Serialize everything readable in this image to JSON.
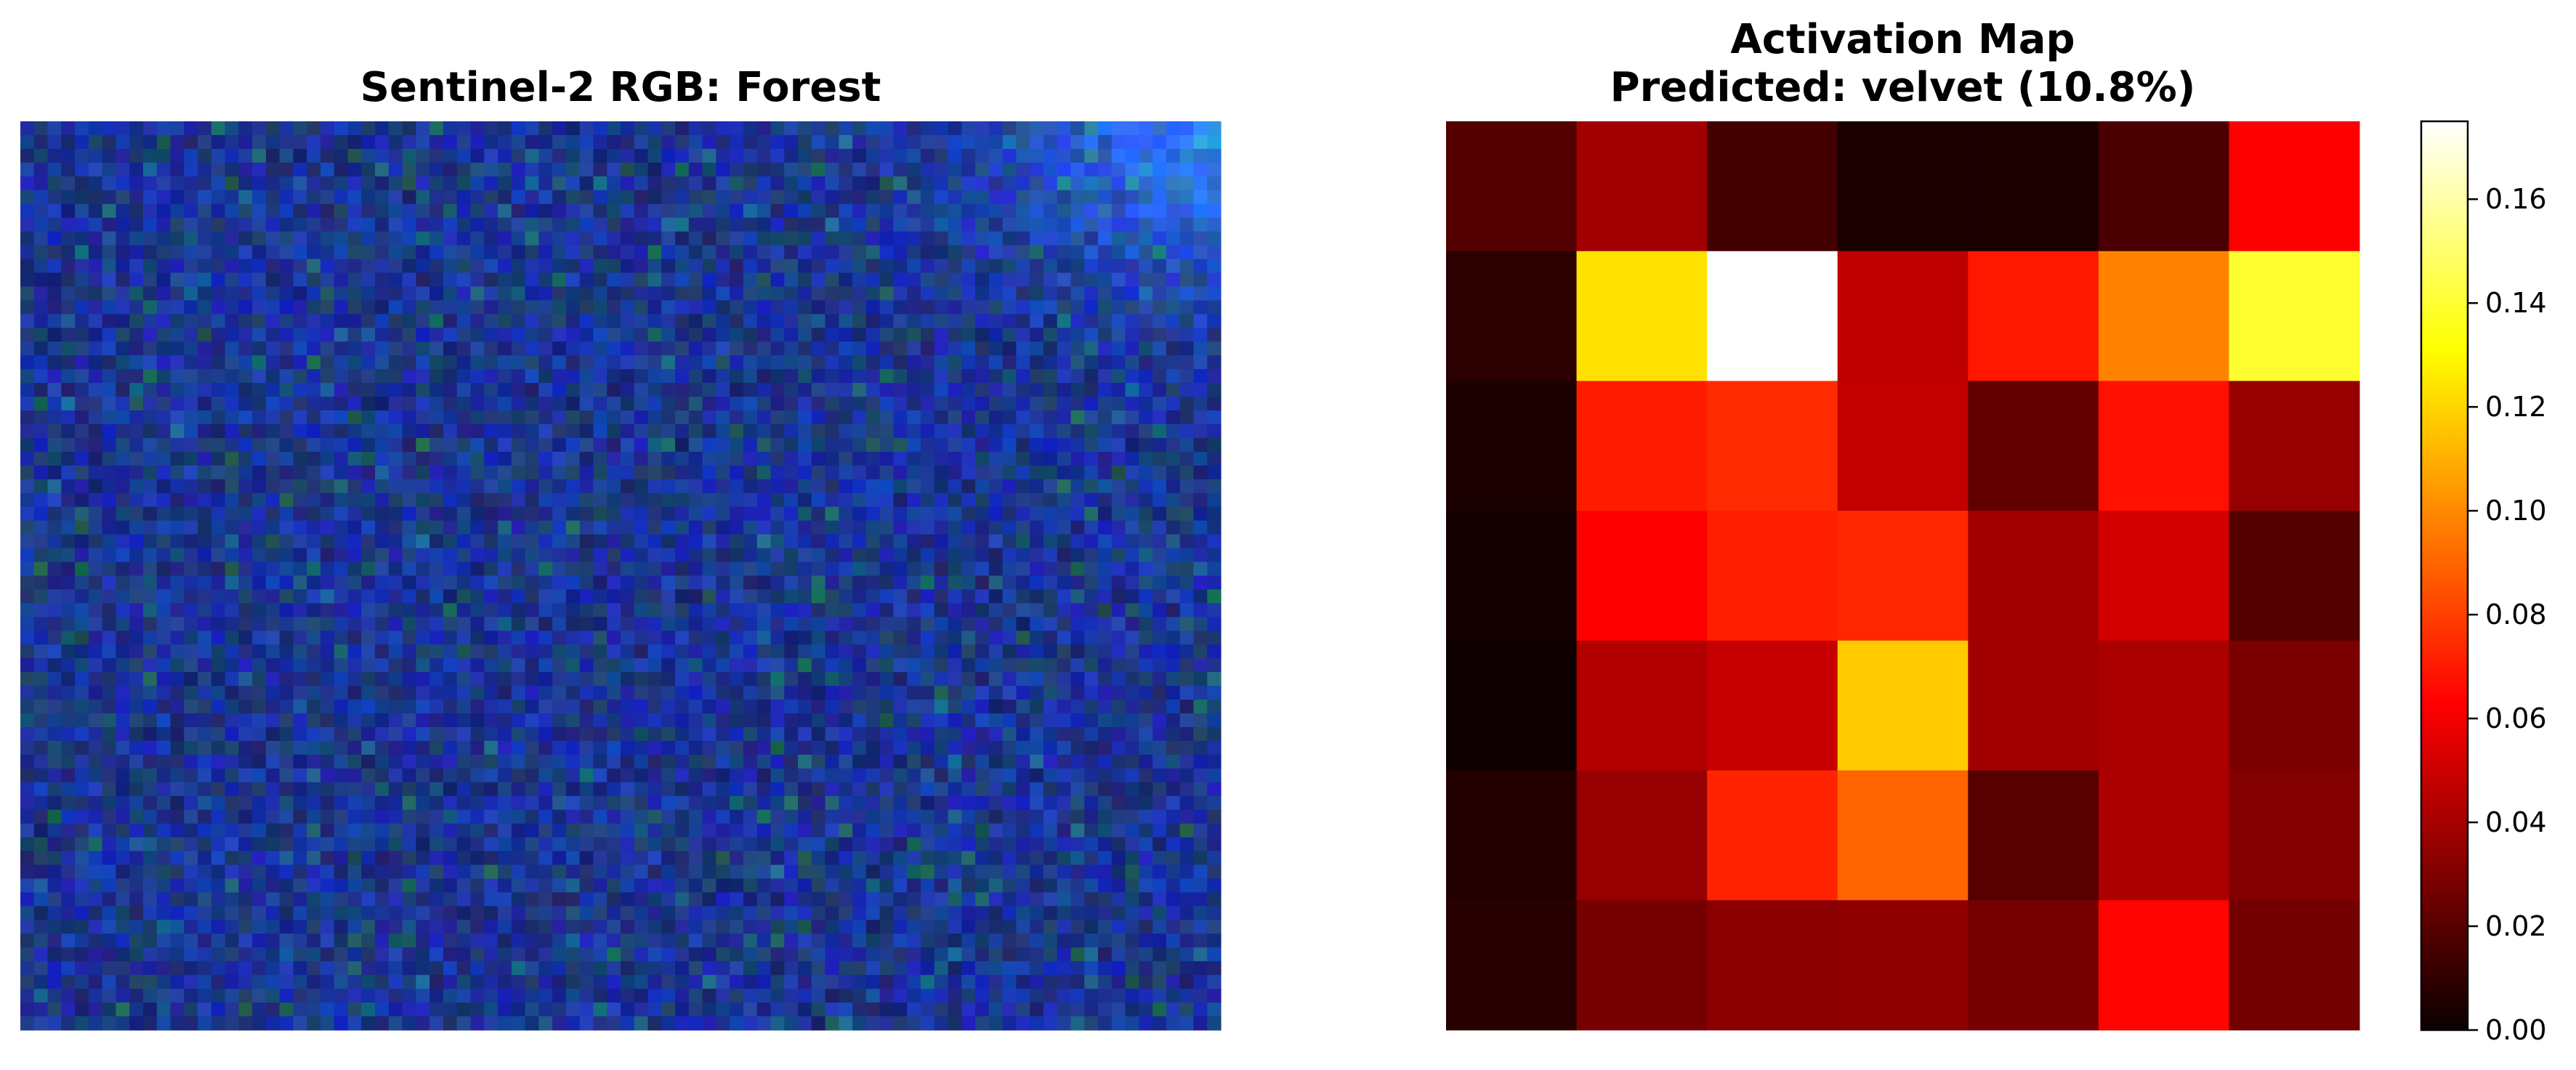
{
  "left_panel": {
    "title": "Sentinel-2 RGB: Forest"
  },
  "right_panel": {
    "title_line1": "Activation Map",
    "title_line2": "Predicted: velvet (10.8%)"
  },
  "chart_data": [
    {
      "type": "heatmap",
      "title": "Activation Map\nPredicted: velvet (10.8%)",
      "colormap": "hot",
      "rows": 7,
      "cols": 7,
      "values": [
        [
          0.018,
          0.038,
          0.014,
          0.004,
          0.004,
          0.016,
          0.064
        ],
        [
          0.008,
          0.123,
          0.175,
          0.045,
          0.07,
          0.098,
          0.139
        ],
        [
          0.004,
          0.071,
          0.075,
          0.046,
          0.022,
          0.068,
          0.035
        ],
        [
          0.002,
          0.062,
          0.072,
          0.074,
          0.038,
          0.05,
          0.018
        ],
        [
          0.001,
          0.042,
          0.047,
          0.117,
          0.038,
          0.04,
          0.028
        ],
        [
          0.006,
          0.035,
          0.073,
          0.09,
          0.019,
          0.04,
          0.03
        ],
        [
          0.007,
          0.027,
          0.032,
          0.033,
          0.027,
          0.065,
          0.026
        ]
      ],
      "colorbar": {
        "range": [
          0,
          0.175
        ],
        "ticks": [
          "0.00",
          "0.02",
          "0.04",
          "0.06",
          "0.08",
          "0.10",
          "0.12",
          "0.14",
          "0.16"
        ]
      }
    }
  ]
}
